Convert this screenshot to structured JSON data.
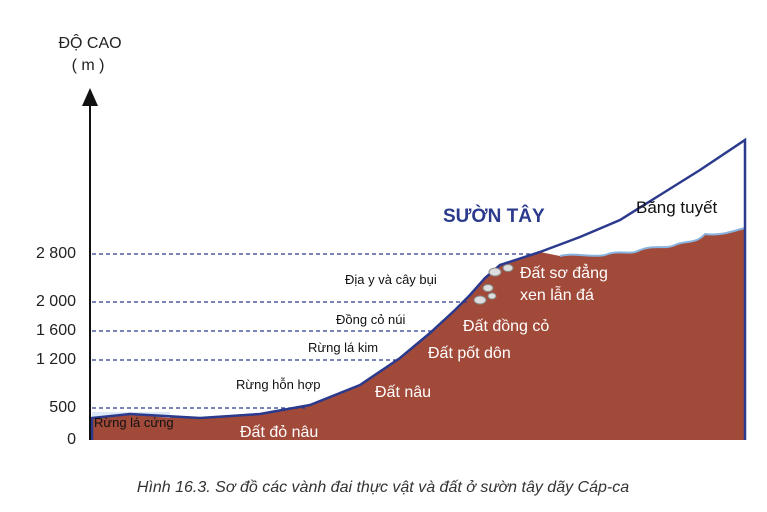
{
  "axis": {
    "title": "ĐỘ CAO",
    "unit": "( m )",
    "ticks": [
      "0",
      "500",
      "1 200",
      "1 600",
      "2 000",
      "2 800"
    ]
  },
  "slope_name": "SƯỜN TÂY",
  "vegetation": [
    "Rừng lá cứng",
    "Rừng hỗn hợp",
    "Rừng lá kim",
    "Đồng cỏ núi",
    "Địa y và cây bụi",
    "Băng tuyết"
  ],
  "soils": [
    "Đất đỏ nâu",
    "Đất nâu",
    "Đất pốt dôn",
    "Đất đồng cỏ",
    "Đất sơ đẳng",
    "xen lẫn đá"
  ],
  "caption": "Hình 16.3. Sơ đồ các vành đai thực vật và đất ở sườn tây dãy Cáp-ca"
}
